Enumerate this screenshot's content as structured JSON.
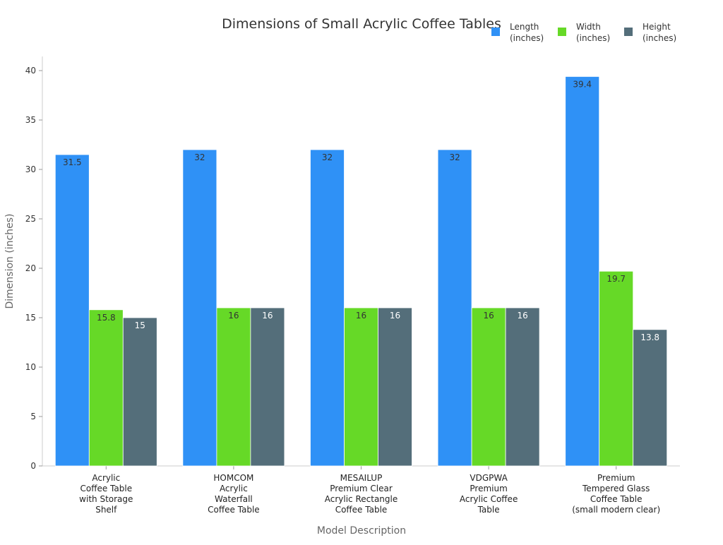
{
  "chart_data": {
    "type": "bar",
    "title": "Dimensions of Small Acrylic Coffee Tables",
    "xlabel": "Model Description",
    "ylabel": "Dimension (inches)",
    "ylim": [
      0,
      40
    ],
    "yticks": [
      0,
      5,
      10,
      15,
      20,
      25,
      30,
      35,
      40
    ],
    "grid": false,
    "legend_position": "top-right",
    "categories": [
      [
        "Acrylic",
        "Coffee Table",
        "with Storage",
        "Shelf"
      ],
      [
        "HOMCOM",
        "Acrylic",
        "Waterfall",
        "Coffee Table"
      ],
      [
        "MESAILUP",
        "Premium Clear",
        "Acrylic Rectangle",
        "Coffee Table"
      ],
      [
        "VDGPWA",
        "Premium",
        "Acrylic Coffee",
        "Table"
      ],
      [
        "Premium",
        "Tempered Glass",
        "Coffee Table",
        "(small modern clear)"
      ]
    ],
    "series": [
      {
        "name": [
          "Length",
          "(inches)"
        ],
        "color": "#2f91f6",
        "label_color": "#333333",
        "values": [
          31.5,
          32,
          32,
          32,
          39.4
        ]
      },
      {
        "name": [
          "Width",
          "(inches)"
        ],
        "color": "#66d927",
        "label_color": "#333333",
        "values": [
          15.8,
          16,
          16,
          16,
          19.7
        ]
      },
      {
        "name": [
          "Height",
          "(inches)"
        ],
        "color": "#546e7a",
        "label_color": "#ffffff",
        "values": [
          15,
          16,
          16,
          16,
          13.8
        ]
      }
    ]
  }
}
